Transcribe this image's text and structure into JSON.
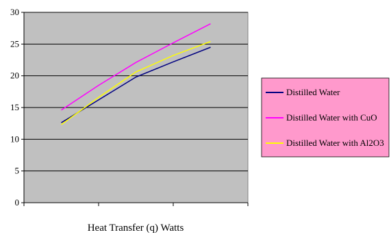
{
  "chart_data": {
    "type": "line",
    "title": "",
    "xlabel": "Heat Transfer (q) Watts",
    "ylabel": "",
    "ylim": [
      0,
      30
    ],
    "yticks": [
      0,
      5,
      10,
      15,
      20,
      25,
      30
    ],
    "x_categories": 3,
    "grid": true,
    "plot_background": "#c0c0c0",
    "legend_position": "right",
    "legend_background": "#ff99cc",
    "series": [
      {
        "name": "Distilled Water",
        "color": "#000080",
        "values": [
          12.6,
          16.2,
          19.8,
          22.2,
          24.5
        ]
      },
      {
        "name": "Distilled Water with CuO",
        "color": "#ff00ff",
        "values": [
          14.6,
          18.5,
          22.1,
          25.2,
          28.2
        ]
      },
      {
        "name": "Distilled Water with Al2O3",
        "color": "#ffff00",
        "values": [
          12.3,
          16.6,
          20.6,
          23.2,
          25.4
        ]
      }
    ],
    "x_positions": [
      0.5,
      1.0,
      1.5,
      2.0,
      2.5
    ]
  }
}
